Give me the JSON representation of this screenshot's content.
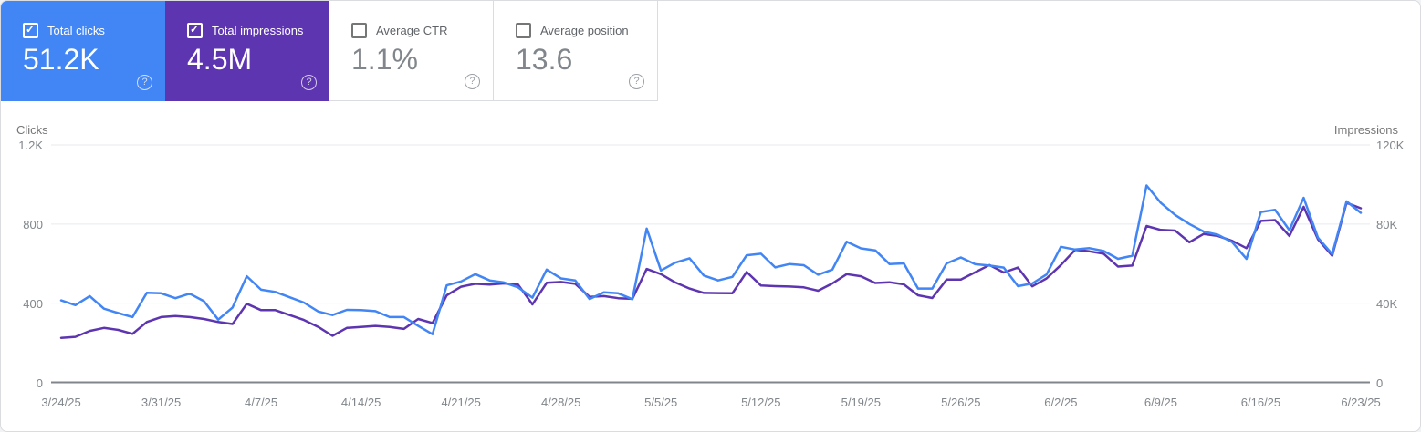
{
  "cards": [
    {
      "label": "Total clicks",
      "value": "51.2K",
      "checked": true,
      "bg": "#4285f4"
    },
    {
      "label": "Total impressions",
      "value": "4.5M",
      "checked": true,
      "bg": "#5e35b1"
    },
    {
      "label": "Average CTR",
      "value": "1.1%",
      "checked": false,
      "bg": "#ffffff"
    },
    {
      "label": "Average position",
      "value": "13.6",
      "checked": false,
      "bg": "#ffffff"
    }
  ],
  "help_icon_glyph": "?",
  "chart_data": {
    "type": "line",
    "x_unit": "day",
    "x_start_label": "3/24/25",
    "x_end_label": "6/23/25",
    "x_tick_day_interval": 7,
    "x_tick_labels": [
      "3/24/25",
      "3/31/25",
      "4/7/25",
      "4/14/25",
      "4/21/25",
      "4/28/25",
      "5/5/25",
      "5/12/25",
      "5/19/25",
      "5/26/25",
      "6/2/25",
      "6/9/25",
      "6/16/25",
      "6/23/25"
    ],
    "left_axis": {
      "title": "Clicks",
      "tick_labels": [
        "0",
        "400",
        "800",
        "1.2K"
      ],
      "tick_values": [
        0,
        400,
        800,
        1200
      ],
      "max": 1200
    },
    "right_axis": {
      "title": "Impressions",
      "tick_labels": [
        "0",
        "40K",
        "80K",
        "120K"
      ],
      "tick_values": [
        0,
        40000,
        80000,
        120000
      ],
      "max": 120000
    },
    "grid": "horizontal",
    "legend": "none",
    "colors": {
      "grid": "#e8eaed",
      "baseline": "#80868b",
      "tick_text": "#80868b"
    },
    "series": [
      {
        "name": "Total clicks",
        "axis": "left",
        "color": "#4285f4",
        "values": [
          414,
          390,
          436,
          372,
          350,
          330,
          453,
          450,
          425,
          448,
          410,
          317,
          378,
          536,
          468,
          457,
          430,
          403,
          358,
          340,
          366,
          365,
          360,
          330,
          330,
          285,
          243,
          490,
          510,
          547,
          515,
          505,
          480,
          428,
          570,
          525,
          515,
          421,
          455,
          450,
          420,
          777,
          565,
          605,
          627,
          540,
          515,
          533,
          642,
          650,
          581,
          598,
          592,
          544,
          570,
          711,
          677,
          667,
          598,
          601,
          474,
          474,
          601,
          631,
          597,
          590,
          580,
          486,
          500,
          545,
          685,
          671,
          678,
          664,
          624,
          640,
          995,
          907,
          846,
          800,
          762,
          746,
          708,
          624,
          861,
          872,
          769,
          933,
          731,
          648,
          915,
          857
        ]
      },
      {
        "name": "Total impressions",
        "axis": "right",
        "color": "#5e35b1",
        "values": [
          22500,
          23000,
          26000,
          27500,
          26500,
          24500,
          30500,
          33000,
          33500,
          33000,
          32000,
          30500,
          29500,
          39700,
          36500,
          36500,
          34000,
          31500,
          28000,
          23500,
          27500,
          28000,
          28500,
          28000,
          27000,
          32000,
          30000,
          44000,
          48300,
          49800,
          49400,
          50000,
          49400,
          39400,
          50300,
          50700,
          49800,
          43200,
          43600,
          42500,
          42200,
          57300,
          54700,
          50500,
          47400,
          45200,
          45100,
          45000,
          55800,
          48900,
          48600,
          48400,
          48000,
          46300,
          50000,
          54700,
          53600,
          50200,
          50600,
          49500,
          44000,
          42600,
          51900,
          51900,
          55600,
          59300,
          55500,
          58000,
          48500,
          52500,
          59300,
          67000,
          66200,
          65000,
          58500,
          59000,
          79000,
          77000,
          76700,
          70800,
          75000,
          74000,
          71500,
          67800,
          81600,
          82000,
          74000,
          88700,
          72300,
          64000,
          90700,
          88000
        ]
      }
    ]
  }
}
